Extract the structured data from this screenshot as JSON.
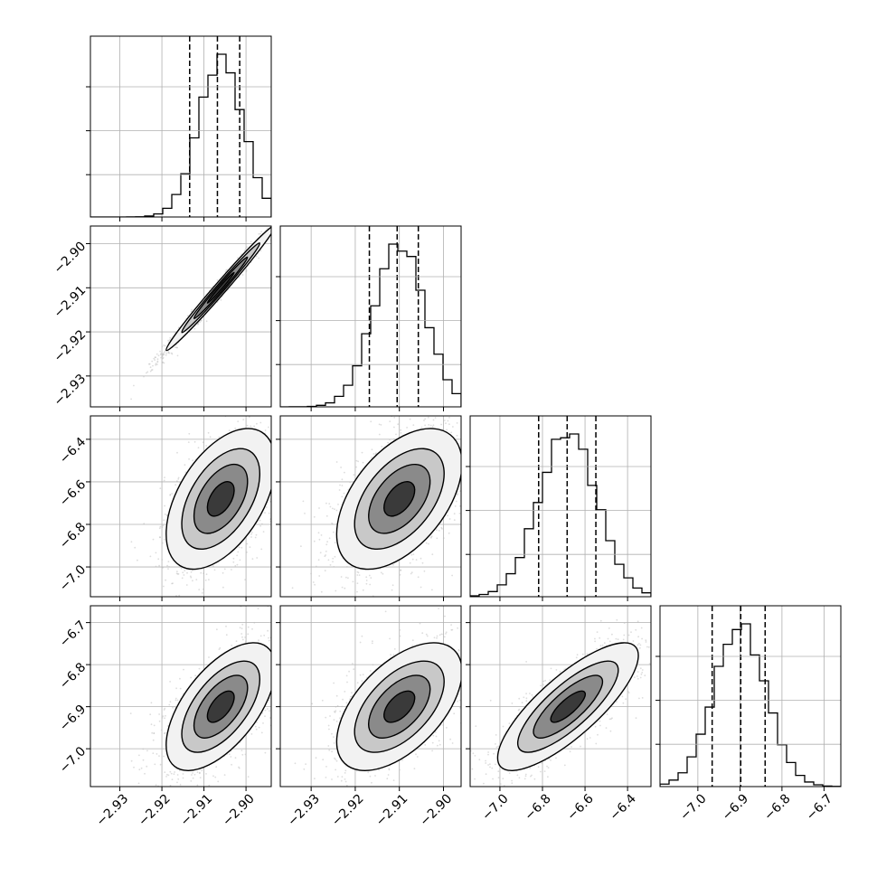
{
  "chart_data": {
    "type": "corner",
    "n_params": 4,
    "grid": true,
    "params": [
      {
        "hist_range": [
          -2.937,
          -2.894
        ],
        "quantiles": [
          -2.9134,
          -2.9068,
          -2.9015
        ],
        "mode": -2.906,
        "sigma": 0.0053,
        "ticks": [
          -2.93,
          -2.92,
          -2.91,
          -2.9
        ],
        "tick_labels": [
          "−2.93",
          "−2.92",
          "−2.91",
          "−2.90"
        ]
      },
      {
        "hist_range": [
          -2.937,
          -2.896
        ],
        "quantiles": [
          -2.9168,
          -2.9105,
          -2.9057
        ],
        "mode": -2.91,
        "sigma": 0.0058,
        "ticks": [
          -2.93,
          -2.92,
          -2.91,
          -2.9
        ],
        "tick_labels": [
          "−2.93",
          "−2.92",
          "−2.91",
          "−2.90"
        ]
      },
      {
        "hist_range": [
          -7.14,
          -6.29
        ],
        "quantiles": [
          -6.818,
          -6.684,
          -6.549
        ],
        "mode": -6.68,
        "sigma": 0.135,
        "ticks": [
          -7.0,
          -6.8,
          -6.6,
          -6.4
        ],
        "tick_labels": [
          "−7.0",
          "−6.8",
          "−6.6",
          "−6.4"
        ]
      },
      {
        "hist_range": [
          -7.09,
          -6.66
        ],
        "quantiles": [
          -6.966,
          -6.898,
          -6.84
        ],
        "mode": -6.9,
        "sigma": 0.062,
        "ticks": [
          -7.0,
          -6.9,
          -6.8,
          -6.7
        ],
        "tick_labels": [
          "−7.0",
          "−6.9",
          "−6.8",
          "−6.7"
        ]
      }
    ],
    "y_axes": [
      {
        "row": 1,
        "ticks": [
          -2.9,
          -2.91,
          -2.92,
          -2.93
        ],
        "tick_labels": [
          "−2.90",
          "−2.91",
          "−2.92",
          "−2.93"
        ]
      },
      {
        "row": 2,
        "ticks": [
          -6.4,
          -6.6,
          -6.8,
          -7.0
        ],
        "tick_labels": [
          "−6.4",
          "−6.6",
          "−6.8",
          "−7.0"
        ]
      },
      {
        "row": 3,
        "ticks": [
          -6.7,
          -6.8,
          -6.9,
          -7.0
        ],
        "tick_labels": [
          "−6.7",
          "−6.8",
          "−6.9",
          "−7.0"
        ]
      }
    ],
    "correlations": [
      [
        1.0,
        0.99,
        0.5,
        0.6
      ],
      [
        0.99,
        1.0,
        0.5,
        0.55
      ],
      [
        0.5,
        0.5,
        1.0,
        0.8
      ],
      [
        0.6,
        0.55,
        0.8,
        1.0
      ]
    ],
    "colors": {
      "scatter": "#bbbbbb",
      "contour": "#000000",
      "grid": "#b0b0b0",
      "density_dark": "#000000"
    }
  }
}
